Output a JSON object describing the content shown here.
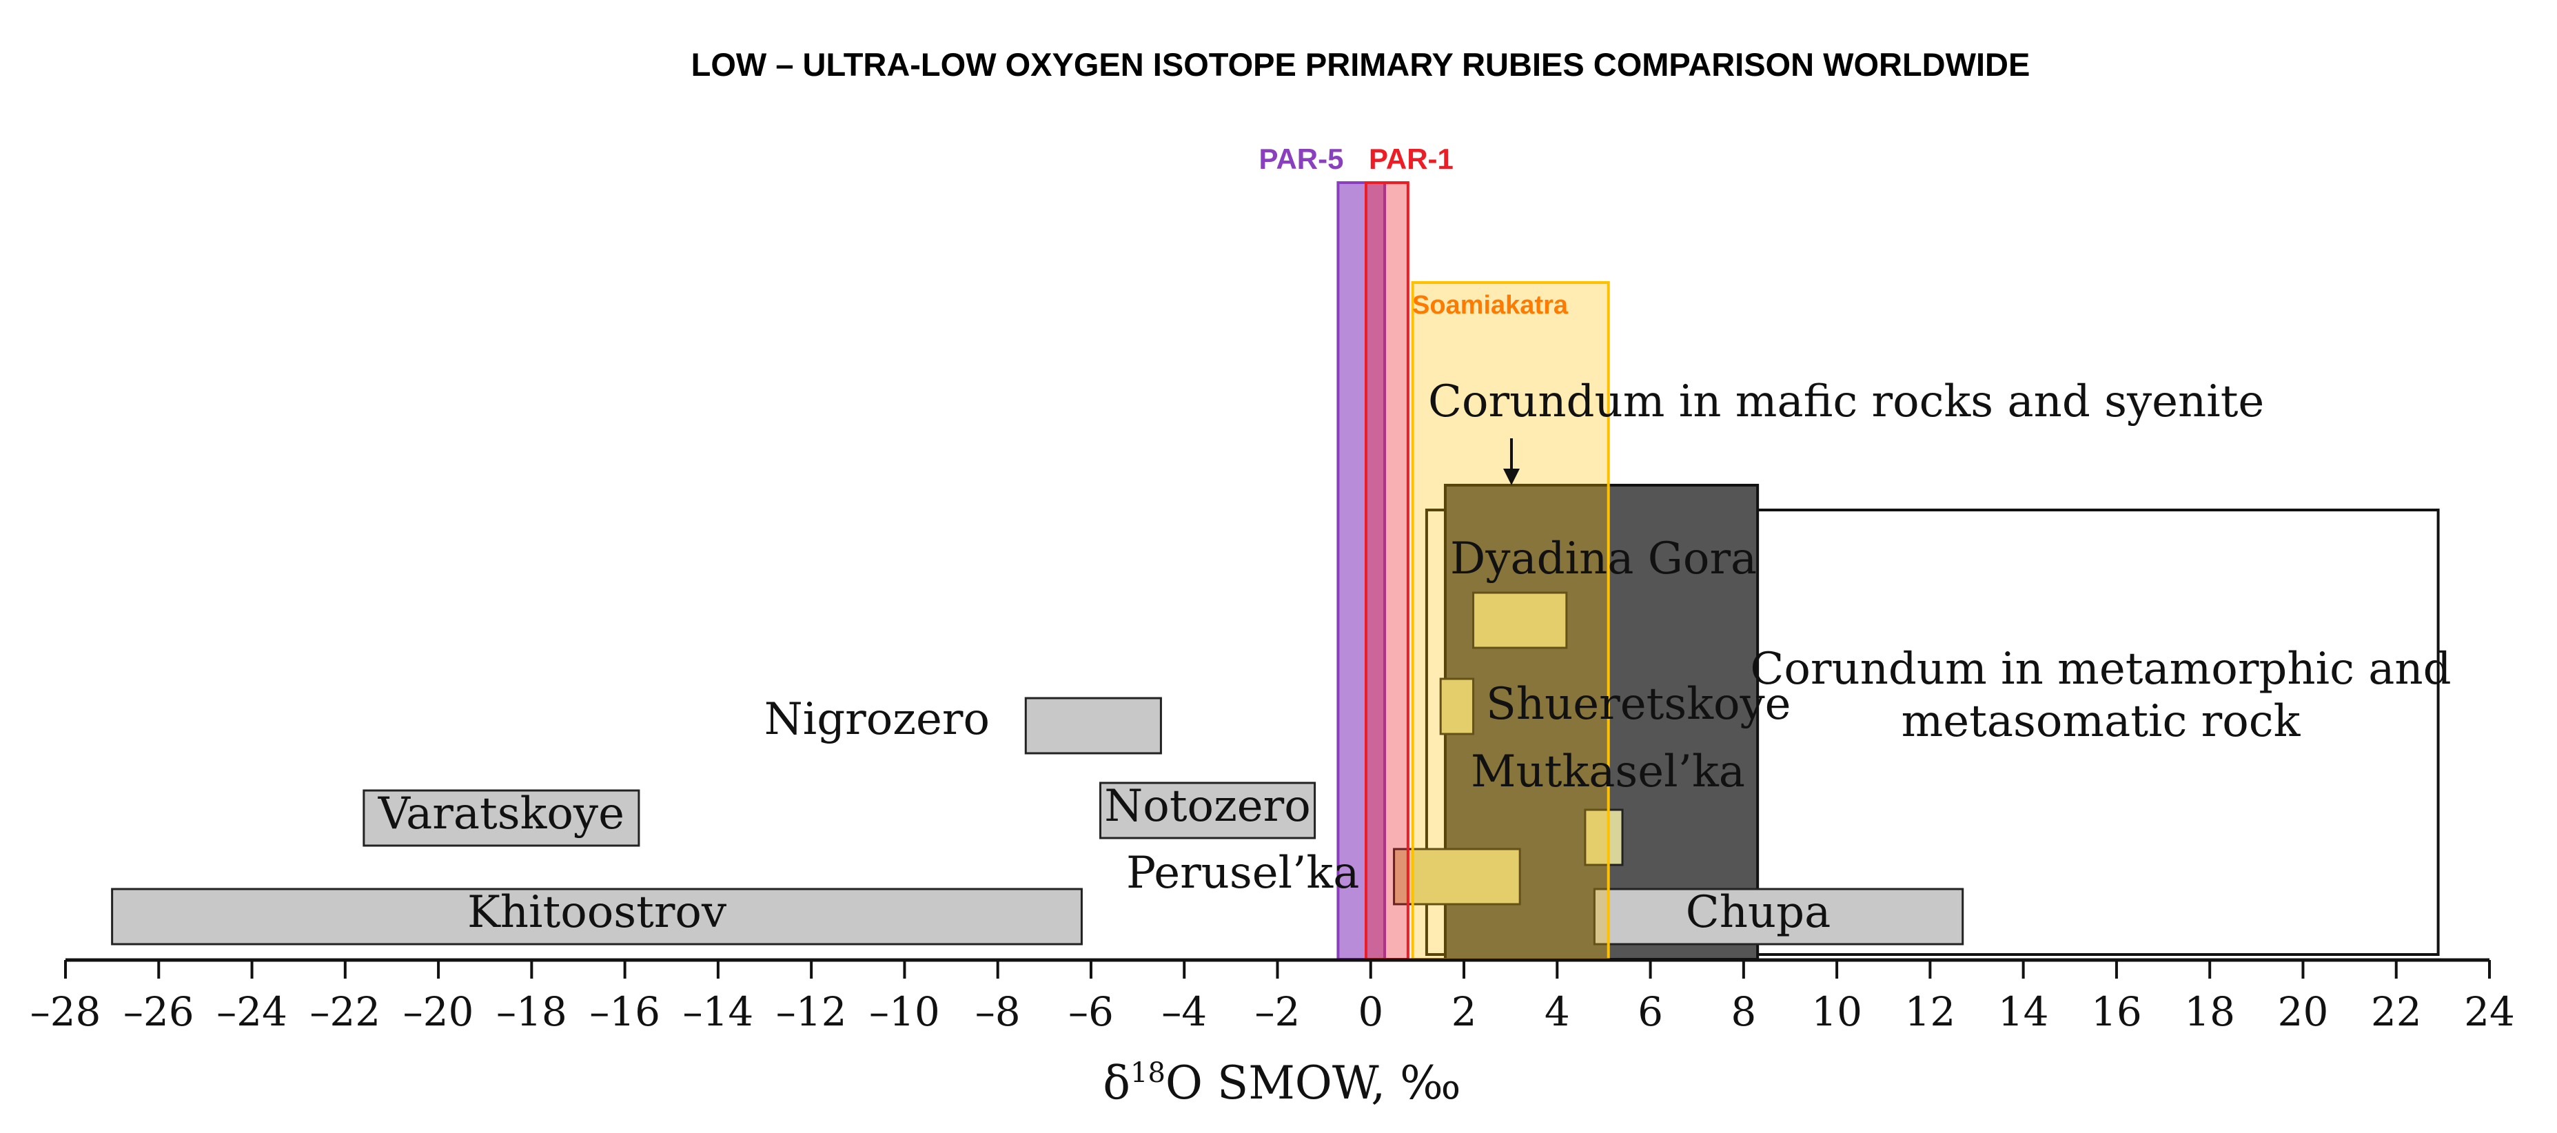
{
  "chart_data": {
    "type": "range-bar",
    "title": "LOW – ULTRA-LOW OXYGEN ISOTOPE PRIMARY RUBIES COMPARISON WORLDWIDE",
    "xlabel_prefix": "δ",
    "xlabel_sup": "18",
    "xlabel_suffix": "O SMOW, ‰",
    "xlim": [
      -28,
      24
    ],
    "x_ticks": [
      -28,
      -26,
      -24,
      -22,
      -20,
      -18,
      -16,
      -14,
      -12,
      -10,
      -8,
      -6,
      -4,
      -2,
      0,
      2,
      4,
      6,
      8,
      10,
      12,
      14,
      16,
      18,
      20,
      22,
      24
    ],
    "x_tick_labels": [
      "–28",
      "–26",
      "–24",
      "–22",
      "–20",
      "–18",
      "–16",
      "–14",
      "–12",
      "–10",
      "–8",
      "–6",
      "–4",
      "–2",
      "0",
      "2",
      "4",
      "6",
      "8",
      "10",
      "12",
      "14",
      "16",
      "18",
      "20",
      "22",
      "24"
    ],
    "group_boxes": [
      {
        "label": "Corundum in metamorphic and",
        "label2": "metasomatic rock",
        "x0": 1.2,
        "x1": 22.9,
        "color": "#ffffff"
      },
      {
        "label": "Corundum in mafic rocks and syenite",
        "x0": 1.6,
        "x1": 8.3,
        "color": "#555555"
      }
    ],
    "localities": [
      {
        "name": "Khitoostrov",
        "x0": -27.0,
        "x1": -6.2,
        "color": "#c8c8c8"
      },
      {
        "name": "Varatskoye",
        "x0": -21.6,
        "x1": -15.7,
        "color": "#c8c8c8"
      },
      {
        "name": "Nigrozero",
        "x0": -7.4,
        "x1": -4.5,
        "color": "#c8c8c8"
      },
      {
        "name": "Notozero",
        "x0": -5.8,
        "x1": -1.2,
        "color": "#c8c8c8"
      },
      {
        "name": "Chupa",
        "x0": 4.8,
        "x1": 12.7,
        "color": "#c8c8c8"
      },
      {
        "name": "Dyadina Gora",
        "x0": 2.2,
        "x1": 4.2,
        "color": "#d9d59a"
      },
      {
        "name": "Shueretskoye",
        "x0": 1.5,
        "x1": 2.2,
        "color": "#d9d59a"
      },
      {
        "name": "Mutkasel’ka",
        "x0": 4.6,
        "x1": 5.4,
        "color": "#d9d59a"
      },
      {
        "name": "Perusel’ka",
        "x0": 0.5,
        "x1": 3.2,
        "color": "#d9d59a"
      }
    ],
    "highlights": [
      {
        "name": "PAR-5",
        "x0": -0.7,
        "x1": 0.3,
        "color": "#8a3fbf"
      },
      {
        "name": "PAR-1",
        "x0": -0.1,
        "x1": 0.8,
        "color": "#ee1c24"
      },
      {
        "name": "Soamiakatra",
        "x0": 0.9,
        "x1": 5.1,
        "color": "#ffc000"
      }
    ]
  }
}
